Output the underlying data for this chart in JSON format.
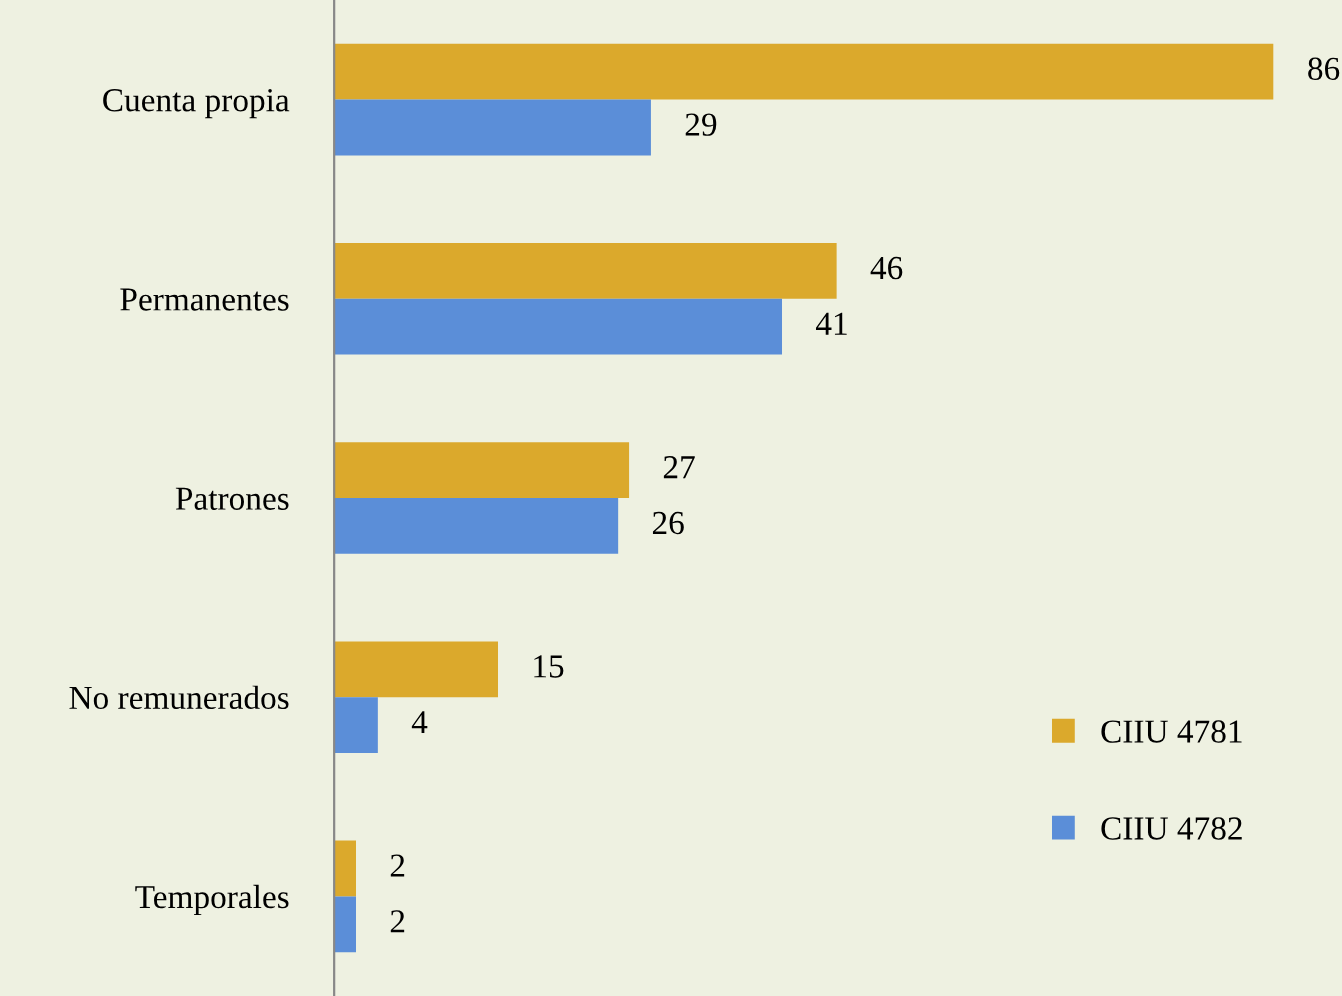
{
  "chart_data": {
    "type": "bar",
    "orientation": "horizontal",
    "categories": [
      "Cuenta propia",
      "Permanentes",
      "Patrones",
      "No remunerados",
      "Temporales"
    ],
    "series": [
      {
        "name": "CIIU 4781",
        "color": "#dba92c",
        "values": [
          86,
          46,
          27,
          15,
          2
        ]
      },
      {
        "name": "CIIU 4782",
        "color": "#5b8ed8",
        "values": [
          29,
          41,
          26,
          4,
          2
        ]
      }
    ],
    "data_labels": true,
    "legend": "bottom right",
    "tick_labels": "y",
    "grid": false
  }
}
